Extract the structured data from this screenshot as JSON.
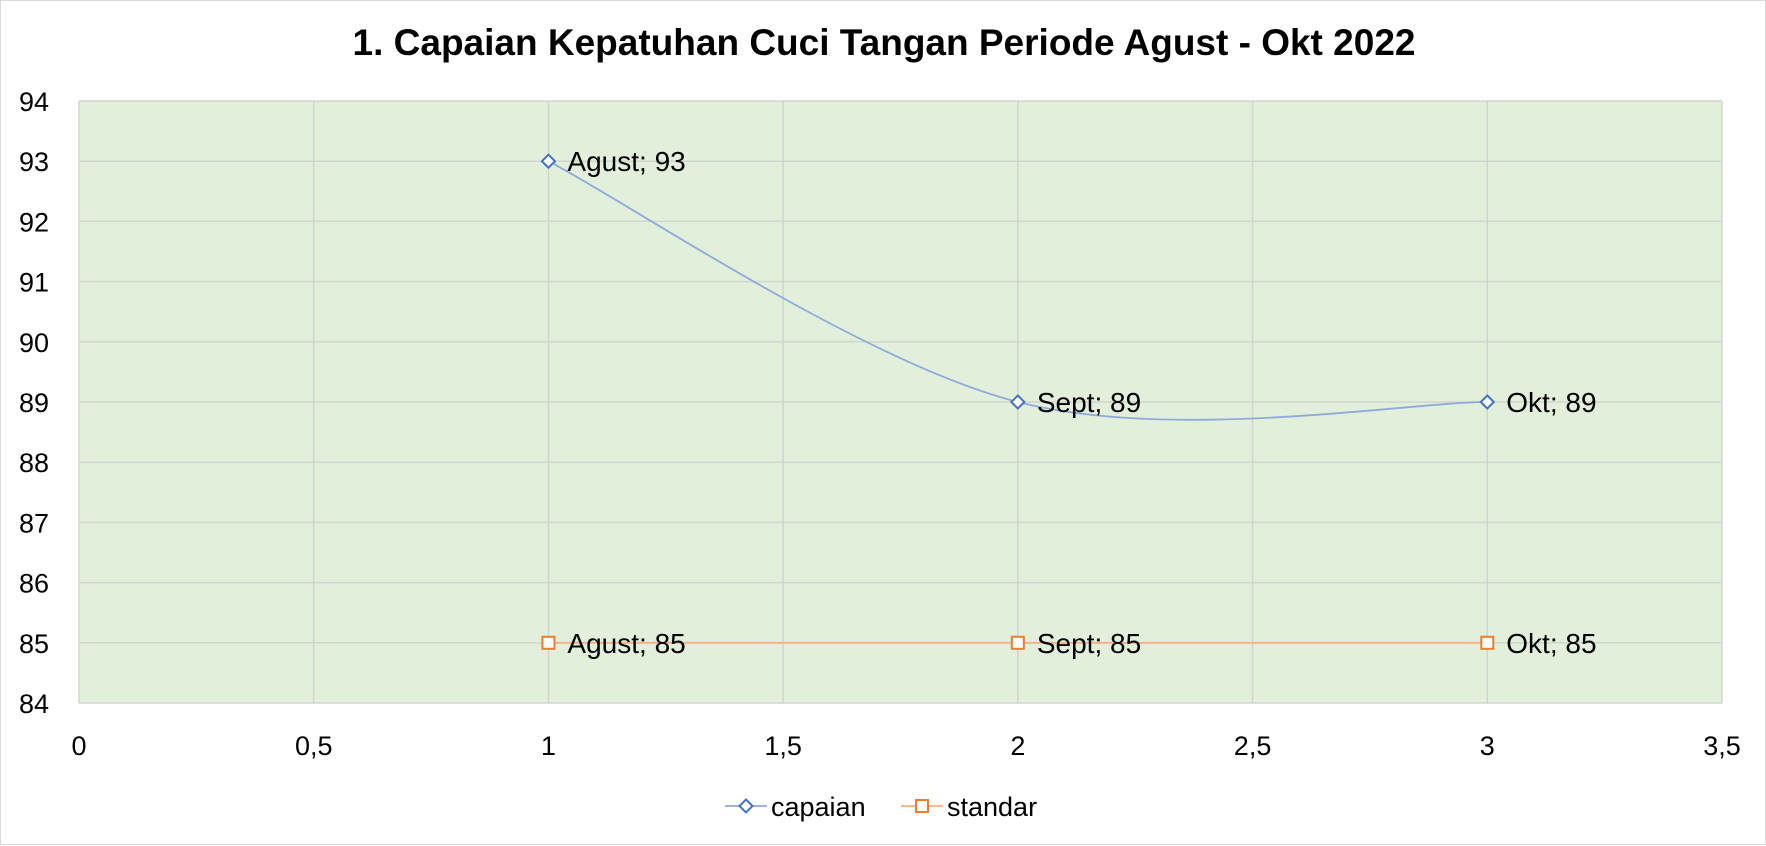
{
  "chart_data": {
    "type": "scatter",
    "title": "1. Capaian Kepatuhan Cuci Tangan Periode Agust - Okt 2022",
    "xlabel": "",
    "ylabel": "",
    "xlim": [
      0,
      3.5
    ],
    "ylim": [
      84,
      94
    ],
    "x_ticks": [
      "0",
      "0,5",
      "1",
      "1,5",
      "2",
      "2,5",
      "3",
      "3,5"
    ],
    "y_ticks": [
      "84",
      "85",
      "86",
      "87",
      "88",
      "89",
      "90",
      "91",
      "92",
      "93",
      "94"
    ],
    "grid": true,
    "plot_background": "#e2efda",
    "legend_position": "bottom",
    "series": [
      {
        "name": "capaian",
        "color": "#4472c4",
        "line_color": "#8faadc",
        "marker": "diamond",
        "smooth": true,
        "x": [
          1,
          2,
          3
        ],
        "y": [
          93,
          89,
          89
        ],
        "labels": [
          "Agust; 93",
          "Sept; 89",
          "Okt; 89"
        ]
      },
      {
        "name": "standar",
        "color": "#ed7d31",
        "line_color": "#f4b183",
        "marker": "square",
        "smooth": false,
        "x": [
          1,
          2,
          3
        ],
        "y": [
          85,
          85,
          85
        ],
        "labels": [
          "Agust; 85",
          "Sept; 85",
          "Okt; 85"
        ]
      }
    ]
  }
}
